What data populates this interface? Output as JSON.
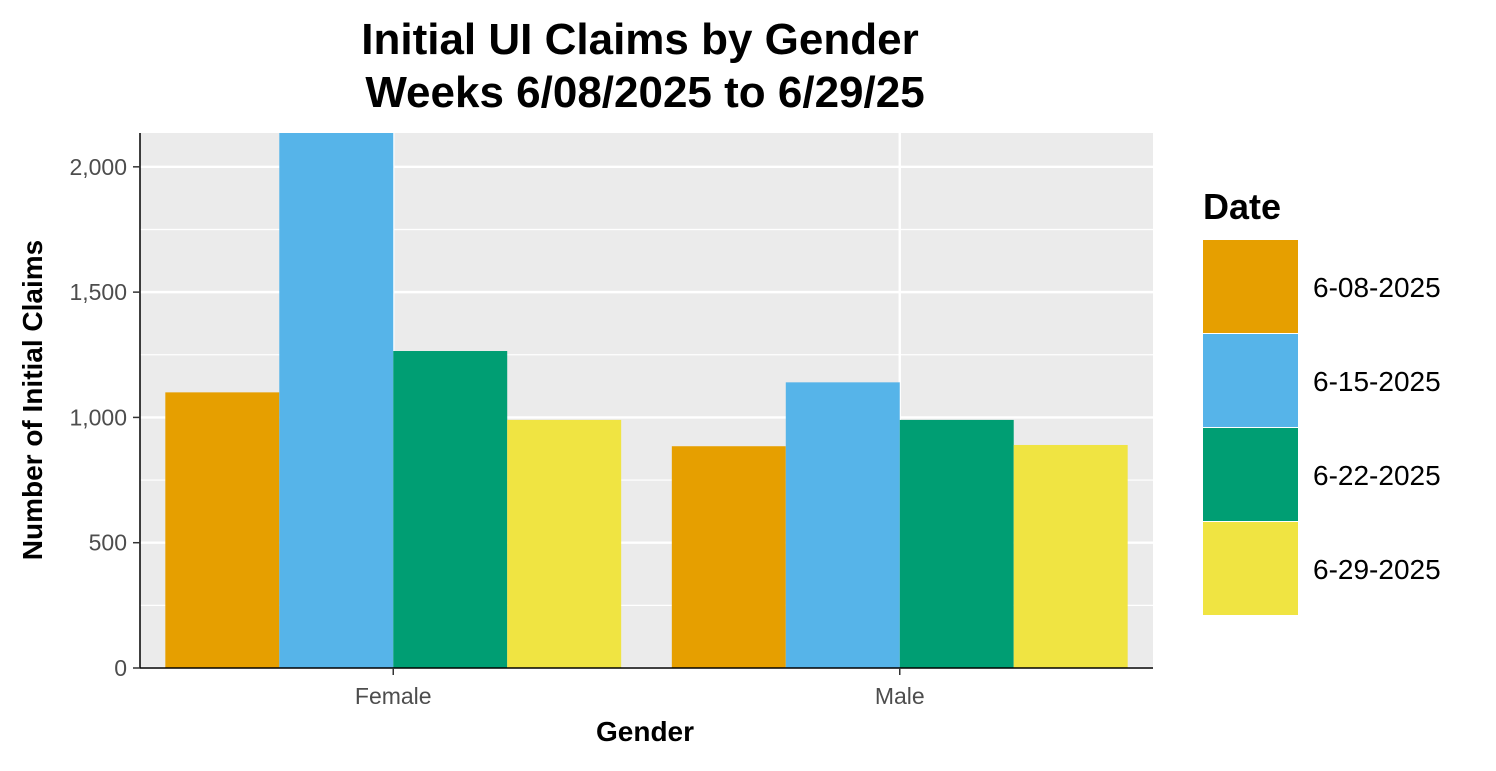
{
  "chart_data": {
    "type": "bar",
    "title": "Initial UI Claims by Gender",
    "subtitle": "Weeks  6/08/2025 to 6/29/25",
    "xlabel": "Gender",
    "ylabel": "Number of Initial Claims",
    "categories": [
      "Female",
      "Male"
    ],
    "series": [
      {
        "name": "6-08-2025",
        "color": "#E69F00",
        "values": [
          1100,
          885
        ]
      },
      {
        "name": "6-15-2025",
        "color": "#56B4E9",
        "values": [
          2135,
          1140
        ]
      },
      {
        "name": "6-22-2025",
        "color": "#009E73",
        "values": [
          1265,
          990
        ]
      },
      {
        "name": "6-29-2025",
        "color": "#F0E442",
        "values": [
          990,
          890
        ]
      }
    ],
    "ylim": [
      0,
      2135
    ],
    "yticks": [
      0,
      500,
      1000,
      1500,
      2000
    ],
    "ytick_labels": [
      "0",
      "500",
      "1,000",
      "1,500",
      "2,000"
    ],
    "legend": {
      "title": "Date",
      "position": "right"
    },
    "grid": true,
    "panel_background": "#EBEBEB"
  }
}
